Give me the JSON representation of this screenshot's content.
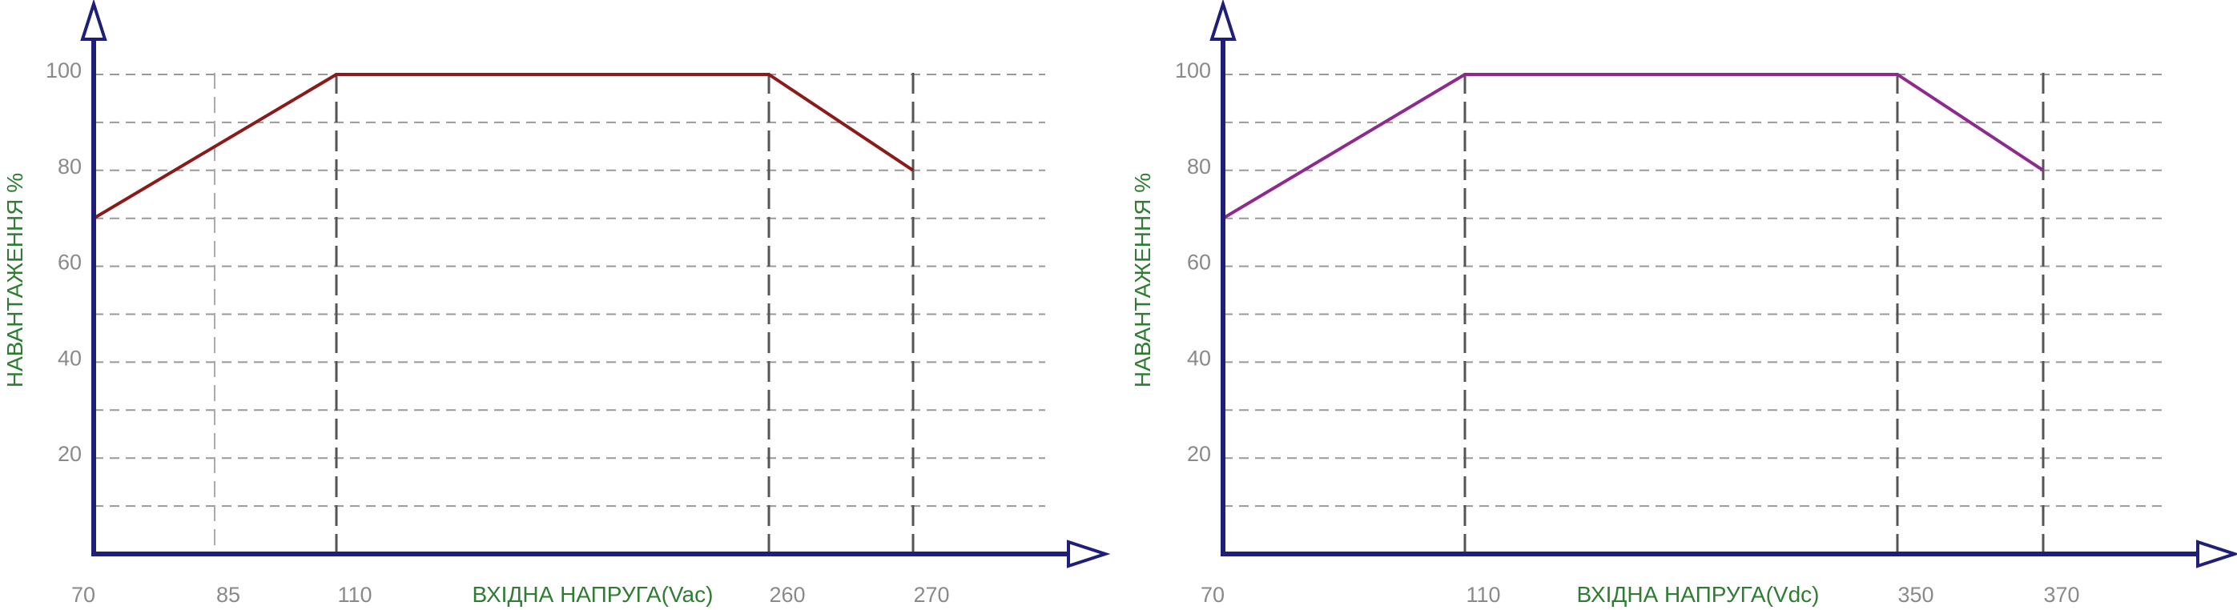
{
  "colors": {
    "axis": "#1f1f7a",
    "grid": "#999999",
    "tick_label": "#8a8a8a",
    "axis_title": "#2e7d32",
    "line_ac": "#8b1a1a",
    "line_dc": "#8e2a8e"
  },
  "chart_data": [
    {
      "type": "line",
      "title": "",
      "xlabel": "ВХІДНА НАПРУГА(Vac)",
      "ylabel": "НАВАНТАЖЕННЯ %",
      "x_ticks": [
        "70",
        "85",
        "110",
        "260",
        "270"
      ],
      "y_ticks": [
        "20",
        "40",
        "60",
        "80",
        "100"
      ],
      "ylim": [
        0,
        100
      ],
      "grid": true,
      "series": [
        {
          "x": [
            70,
            110,
            260,
            270
          ],
          "y": [
            70,
            100,
            100,
            80
          ]
        }
      ]
    },
    {
      "type": "line",
      "title": "",
      "xlabel": "ВХІДНА НАПРУГА(Vdc)",
      "ylabel": "НАВАНТАЖЕННЯ %",
      "x_ticks": [
        "70",
        "110",
        "350",
        "370"
      ],
      "y_ticks": [
        "20",
        "40",
        "60",
        "80",
        "100"
      ],
      "ylim": [
        0,
        100
      ],
      "grid": true,
      "series": [
        {
          "x": [
            70,
            110,
            350,
            370
          ],
          "y": [
            70,
            100,
            100,
            80
          ]
        }
      ]
    }
  ]
}
